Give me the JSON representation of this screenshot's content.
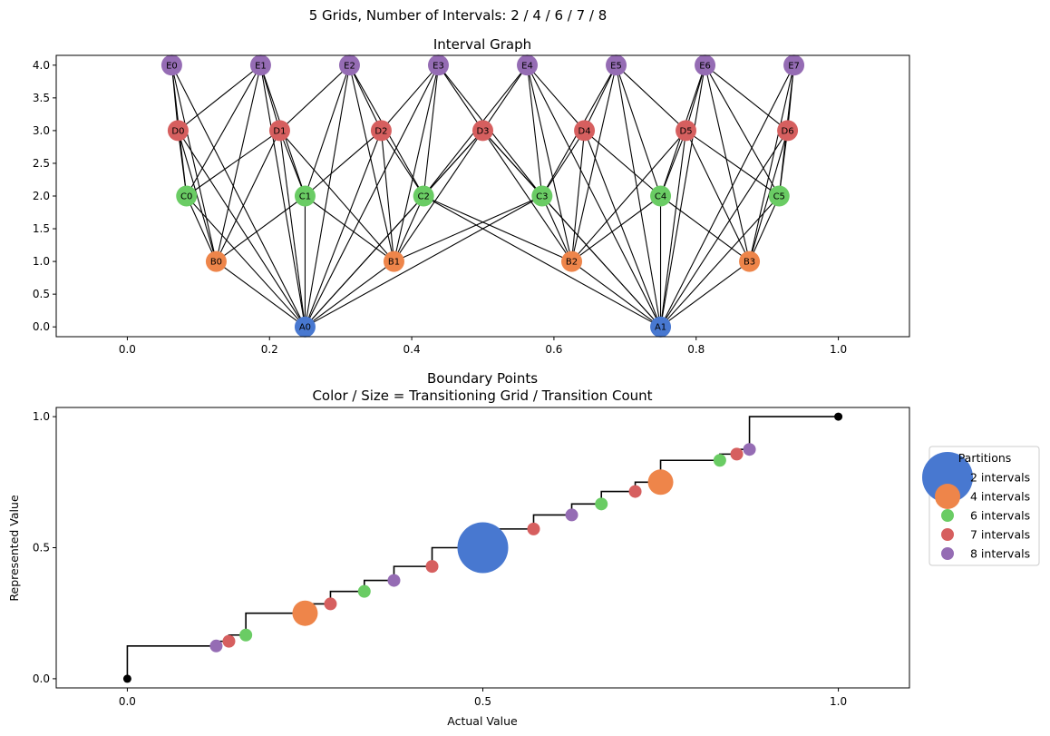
{
  "figure": {
    "suptitle": "5 Grids, Number of Intervals: 2 / 4 / 6 / 7 / 8"
  },
  "colors": {
    "grid_2": "#4878d0",
    "grid_4": "#ee854a",
    "grid_6": "#6acc64",
    "grid_7": "#d65f5f",
    "grid_8": "#956cb4",
    "edge": "#000000",
    "endpoint": "#000000"
  },
  "chart_data": [
    {
      "type": "graph",
      "title": "Interval Graph",
      "xlim": [
        -0.1,
        1.1
      ],
      "ylim": [
        -0.15,
        4.15
      ],
      "x_ticks": [
        "0.0",
        "0.2",
        "0.4",
        "0.6",
        "0.8",
        "1.0"
      ],
      "x_tick_values": [
        0.0,
        0.2,
        0.4,
        0.6,
        0.8,
        1.0
      ],
      "y_ticks": [
        "0.0",
        "0.5",
        "1.0",
        "1.5",
        "2.0",
        "2.5",
        "3.0",
        "3.5",
        "4.0"
      ],
      "y_tick_values": [
        0.0,
        0.5,
        1.0,
        1.5,
        2.0,
        2.5,
        3.0,
        3.5,
        4.0
      ],
      "nodes": [
        {
          "id": "A0",
          "x": 0.25,
          "y": 0,
          "grid": 2
        },
        {
          "id": "A1",
          "x": 0.75,
          "y": 0,
          "grid": 2
        },
        {
          "id": "B0",
          "x": 0.125,
          "y": 1,
          "grid": 4
        },
        {
          "id": "B1",
          "x": 0.375,
          "y": 1,
          "grid": 4
        },
        {
          "id": "B2",
          "x": 0.625,
          "y": 1,
          "grid": 4
        },
        {
          "id": "B3",
          "x": 0.875,
          "y": 1,
          "grid": 4
        },
        {
          "id": "C0",
          "x": 0.0833,
          "y": 2,
          "grid": 6
        },
        {
          "id": "C1",
          "x": 0.25,
          "y": 2,
          "grid": 6
        },
        {
          "id": "C2",
          "x": 0.4167,
          "y": 2,
          "grid": 6
        },
        {
          "id": "C3",
          "x": 0.5833,
          "y": 2,
          "grid": 6
        },
        {
          "id": "C4",
          "x": 0.75,
          "y": 2,
          "grid": 6
        },
        {
          "id": "C5",
          "x": 0.9167,
          "y": 2,
          "grid": 6
        },
        {
          "id": "D0",
          "x": 0.0714,
          "y": 3,
          "grid": 7
        },
        {
          "id": "D1",
          "x": 0.2143,
          "y": 3,
          "grid": 7
        },
        {
          "id": "D2",
          "x": 0.3571,
          "y": 3,
          "grid": 7
        },
        {
          "id": "D3",
          "x": 0.5,
          "y": 3,
          "grid": 7
        },
        {
          "id": "D4",
          "x": 0.6429,
          "y": 3,
          "grid": 7
        },
        {
          "id": "D5",
          "x": 0.7857,
          "y": 3,
          "grid": 7
        },
        {
          "id": "D6",
          "x": 0.9286,
          "y": 3,
          "grid": 7
        },
        {
          "id": "E0",
          "x": 0.0625,
          "y": 4,
          "grid": 8
        },
        {
          "id": "E1",
          "x": 0.1875,
          "y": 4,
          "grid": 8
        },
        {
          "id": "E2",
          "x": 0.3125,
          "y": 4,
          "grid": 8
        },
        {
          "id": "E3",
          "x": 0.4375,
          "y": 4,
          "grid": 8
        },
        {
          "id": "E4",
          "x": 0.5625,
          "y": 4,
          "grid": 8
        },
        {
          "id": "E5",
          "x": 0.6875,
          "y": 4,
          "grid": 8
        },
        {
          "id": "E6",
          "x": 0.8125,
          "y": 4,
          "grid": 8
        },
        {
          "id": "E7",
          "x": 0.9375,
          "y": 4,
          "grid": 8
        }
      ]
    },
    {
      "type": "step-scatter",
      "title": "Boundary Points",
      "subtitle": "Color / Size = Transitioning Grid / Transition Count",
      "xlabel": "Actual Value",
      "ylabel": "Represented Value",
      "xlim": [
        -0.1,
        1.1
      ],
      "ylim": [
        -0.035,
        1.035
      ],
      "x_ticks": [
        "0.0",
        "0.5",
        "1.0"
      ],
      "x_tick_values": [
        0.0,
        0.5,
        1.0
      ],
      "y_ticks": [
        "0.0",
        "0.5",
        "1.0"
      ],
      "y_tick_values": [
        0.0,
        0.5,
        1.0
      ],
      "step": {
        "x": [
          0,
          0.125,
          0.1429,
          0.1667,
          0.25,
          0.2857,
          0.3333,
          0.375,
          0.4286,
          0.5,
          0.5714,
          0.625,
          0.6667,
          0.7143,
          0.75,
          0.8333,
          0.8571,
          0.875,
          1.0
        ],
        "y": [
          0,
          0.125,
          0.1429,
          0.1667,
          0.25,
          0.2857,
          0.3333,
          0.375,
          0.4286,
          0.5,
          0.5714,
          0.625,
          0.6667,
          0.7143,
          0.75,
          0.8333,
          0.8571,
          0.875,
          1.0
        ]
      },
      "endpoints": [
        {
          "x": 0,
          "y": 0
        },
        {
          "x": 1.0,
          "y": 1.0
        }
      ],
      "points": [
        {
          "x": 0.125,
          "y": 0.125,
          "grid": 8,
          "count": 1
        },
        {
          "x": 0.1429,
          "y": 0.1429,
          "grid": 7,
          "count": 1
        },
        {
          "x": 0.1667,
          "y": 0.1667,
          "grid": 6,
          "count": 1
        },
        {
          "x": 0.25,
          "y": 0.25,
          "grid": 4,
          "count": 2
        },
        {
          "x": 0.2857,
          "y": 0.2857,
          "grid": 7,
          "count": 1
        },
        {
          "x": 0.3333,
          "y": 0.3333,
          "grid": 6,
          "count": 1
        },
        {
          "x": 0.375,
          "y": 0.375,
          "grid": 8,
          "count": 1
        },
        {
          "x": 0.4286,
          "y": 0.4286,
          "grid": 7,
          "count": 1
        },
        {
          "x": 0.5,
          "y": 0.5,
          "grid": 2,
          "count": 4
        },
        {
          "x": 0.5714,
          "y": 0.5714,
          "grid": 7,
          "count": 1
        },
        {
          "x": 0.625,
          "y": 0.625,
          "grid": 8,
          "count": 1
        },
        {
          "x": 0.6667,
          "y": 0.6667,
          "grid": 6,
          "count": 1
        },
        {
          "x": 0.7143,
          "y": 0.7143,
          "grid": 7,
          "count": 1
        },
        {
          "x": 0.75,
          "y": 0.75,
          "grid": 4,
          "count": 2
        },
        {
          "x": 0.8333,
          "y": 0.8333,
          "grid": 6,
          "count": 1
        },
        {
          "x": 0.8571,
          "y": 0.8571,
          "grid": 7,
          "count": 1
        },
        {
          "x": 0.875,
          "y": 0.875,
          "grid": 8,
          "count": 1
        }
      ],
      "legend": {
        "title": "Partitions",
        "placement": "outside right",
        "entries": [
          {
            "label": "2 intervals",
            "grid": 2
          },
          {
            "label": "4 intervals",
            "grid": 4
          },
          {
            "label": "6 intervals",
            "grid": 6
          },
          {
            "label": "7 intervals",
            "grid": 7
          },
          {
            "label": "8 intervals",
            "grid": 8
          }
        ]
      }
    }
  ]
}
